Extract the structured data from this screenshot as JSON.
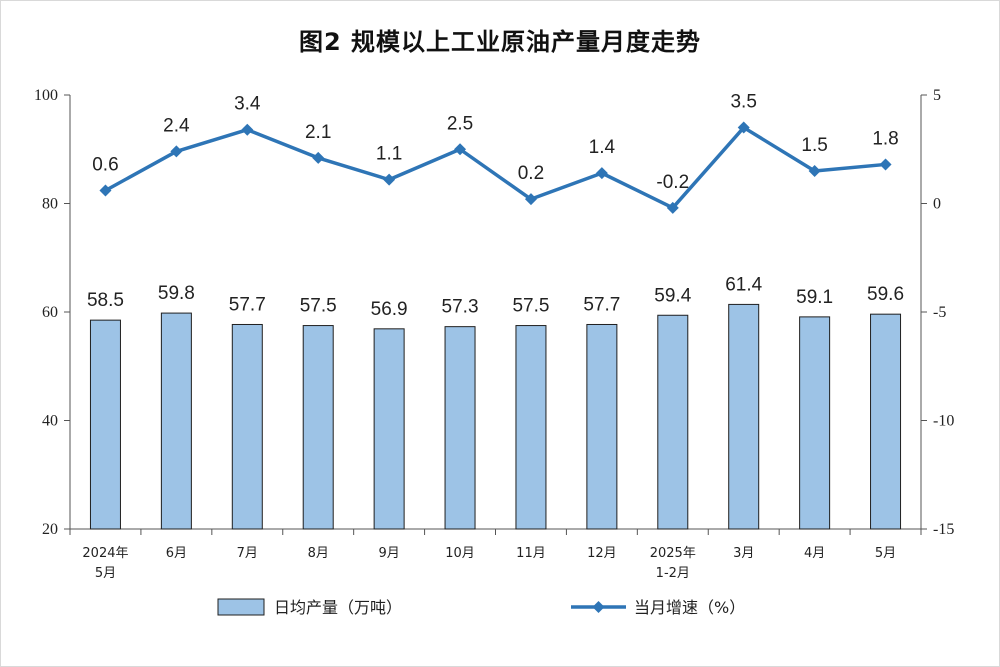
{
  "chart_data": {
    "type": "bar+line",
    "title": "图2  规模以上工业原油产量月度走势",
    "categories": [
      [
        "2024年",
        "5月"
      ],
      [
        "6月"
      ],
      [
        "7月"
      ],
      [
        "8月"
      ],
      [
        "9月"
      ],
      [
        "10月"
      ],
      [
        "11月"
      ],
      [
        "12月"
      ],
      [
        "2025年",
        "1-2月"
      ],
      [
        "3月"
      ],
      [
        "4月"
      ],
      [
        "5月"
      ]
    ],
    "series": [
      {
        "name": "日均产量（万吨）",
        "type": "bar",
        "axis": "left",
        "values": [
          58.5,
          59.8,
          57.7,
          57.5,
          56.9,
          57.3,
          57.5,
          57.7,
          59.4,
          61.4,
          59.1,
          59.6
        ],
        "labels": [
          "58.5",
          "59.8",
          "57.7",
          "57.5",
          "56.9",
          "57.3",
          "57.5",
          "57.7",
          "59.4",
          "61.4",
          "59.1",
          "59.6"
        ]
      },
      {
        "name": "当月增速（%）",
        "type": "line",
        "axis": "right",
        "values": [
          0.6,
          2.4,
          3.4,
          2.1,
          1.1,
          2.5,
          0.2,
          1.4,
          -0.2,
          3.5,
          1.5,
          1.8
        ],
        "labels": [
          "0.6",
          "2.4",
          "3.4",
          "2.1",
          "1.1",
          "2.5",
          "0.2",
          "1.4",
          "-0.2",
          "3.5",
          "1.5",
          "1.8"
        ]
      }
    ],
    "y_left": {
      "ylim": [
        20,
        100
      ],
      "ticks": [
        20,
        40,
        60,
        80,
        100
      ]
    },
    "y_right": {
      "ylim": [
        -15,
        5
      ],
      "ticks": [
        -15,
        -10,
        -5,
        0,
        5
      ]
    },
    "legend_position": "bottom",
    "grid": false,
    "colors": {
      "bar_fill": "#9dc3e6",
      "bar_stroke": "#1f1f1f",
      "line": "#2e75b6"
    }
  }
}
